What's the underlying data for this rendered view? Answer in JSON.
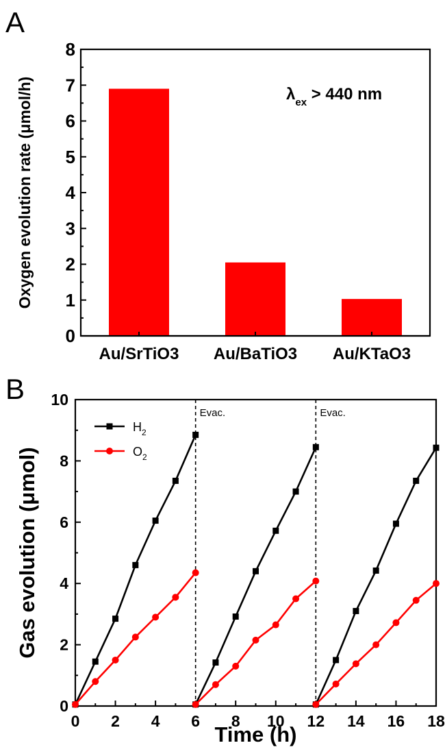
{
  "chart_data": [
    {
      "panel": "A",
      "type": "bar",
      "categories": [
        "Au/SrTiO3",
        "Au/BaTiO3",
        "Au/KTaO3"
      ],
      "values": [
        6.9,
        2.05,
        1.03
      ],
      "ylabel": "Oxygen evolution rate (μmol/h)",
      "xlabel": "",
      "ylim": [
        0,
        8
      ],
      "yticks": [
        0,
        1,
        2,
        3,
        4,
        5,
        6,
        7,
        8
      ],
      "annotation": {
        "lambda": "λ",
        "sub": "ex",
        "text": " > 440 nm"
      },
      "bar_color": "#ff0000",
      "grid": false
    },
    {
      "panel": "B",
      "type": "line",
      "xlabel": "Time (h)",
      "ylabel": "Gas evolution (μmol)",
      "xlim": [
        0,
        18
      ],
      "ylim": [
        0,
        10
      ],
      "xticks": [
        0,
        2,
        4,
        6,
        8,
        10,
        12,
        14,
        16,
        18
      ],
      "yticks": [
        0,
        2,
        4,
        6,
        8,
        10
      ],
      "grid": false,
      "legend_position": "top-left",
      "series": [
        {
          "name": "H",
          "name_sub": "2",
          "color": "#000000",
          "marker": "square",
          "segments": [
            {
              "x": [
                0,
                1,
                2,
                3,
                4,
                5,
                6
              ],
              "y": [
                0.05,
                1.45,
                2.85,
                4.6,
                6.05,
                7.35,
                8.85
              ]
            },
            {
              "x": [
                6,
                7,
                8,
                9,
                10,
                11,
                12
              ],
              "y": [
                0.05,
                1.42,
                2.92,
                4.4,
                5.72,
                7.0,
                8.45
              ]
            },
            {
              "x": [
                12,
                13,
                14,
                15,
                16,
                17,
                18
              ],
              "y": [
                0.05,
                1.5,
                3.1,
                4.42,
                5.95,
                7.35,
                8.43
              ]
            }
          ]
        },
        {
          "name": "O",
          "name_sub": "2",
          "color": "#ff0000",
          "marker": "circle",
          "segments": [
            {
              "x": [
                0,
                1,
                2,
                3,
                4,
                5,
                6
              ],
              "y": [
                0.05,
                0.8,
                1.5,
                2.25,
                2.9,
                3.55,
                4.35
              ]
            },
            {
              "x": [
                6,
                7,
                8,
                9,
                10,
                11,
                12
              ],
              "y": [
                0.05,
                0.7,
                1.3,
                2.15,
                2.65,
                3.5,
                4.08
              ]
            },
            {
              "x": [
                12,
                13,
                14,
                15,
                16,
                17,
                18
              ],
              "y": [
                0.05,
                0.72,
                1.38,
                2.0,
                2.72,
                3.45,
                4.0
              ]
            }
          ]
        }
      ],
      "vlines": [
        {
          "x": 6,
          "label": "Evac."
        },
        {
          "x": 12,
          "label": "Evac."
        }
      ]
    }
  ],
  "panels": {
    "a_label": "A",
    "b_label": "B"
  }
}
